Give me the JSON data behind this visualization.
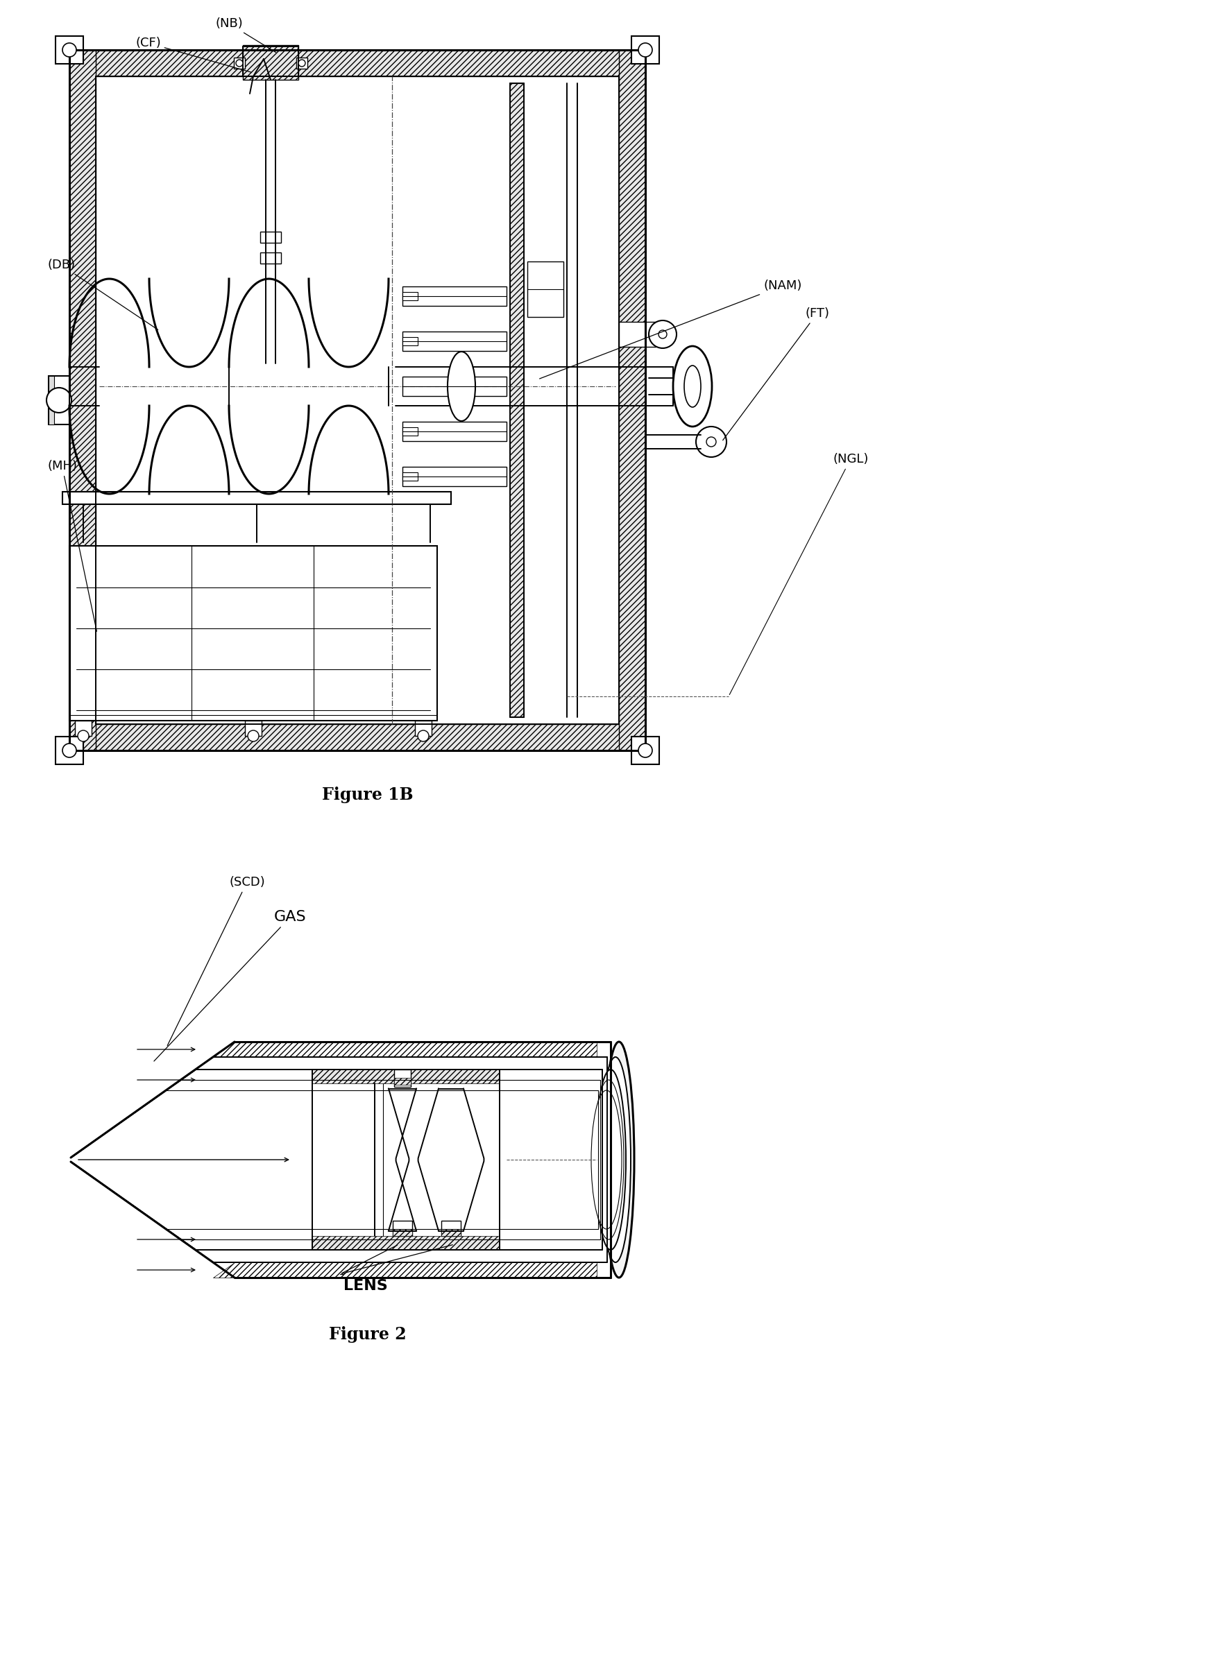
{
  "fig_width": 17.51,
  "fig_height": 24.02,
  "bg_color": "#ffffff",
  "fig1b_title": "Figure 1B",
  "fig2_title": "Figure 2",
  "label_NB": "(NB)",
  "label_CF": "(CF)",
  "label_DB": "(DB)",
  "label_MH": "(MH)",
  "label_NAM": "(NAM)",
  "label_FT": "(FT)",
  "label_NGL": "(NGL)",
  "label_SGD": "(SCD)",
  "label_GAS": "GAS",
  "label_LENS": "LENS",
  "lw_thick": 2.2,
  "lw_main": 1.4,
  "lw_thin": 0.8,
  "label_fs": 13
}
